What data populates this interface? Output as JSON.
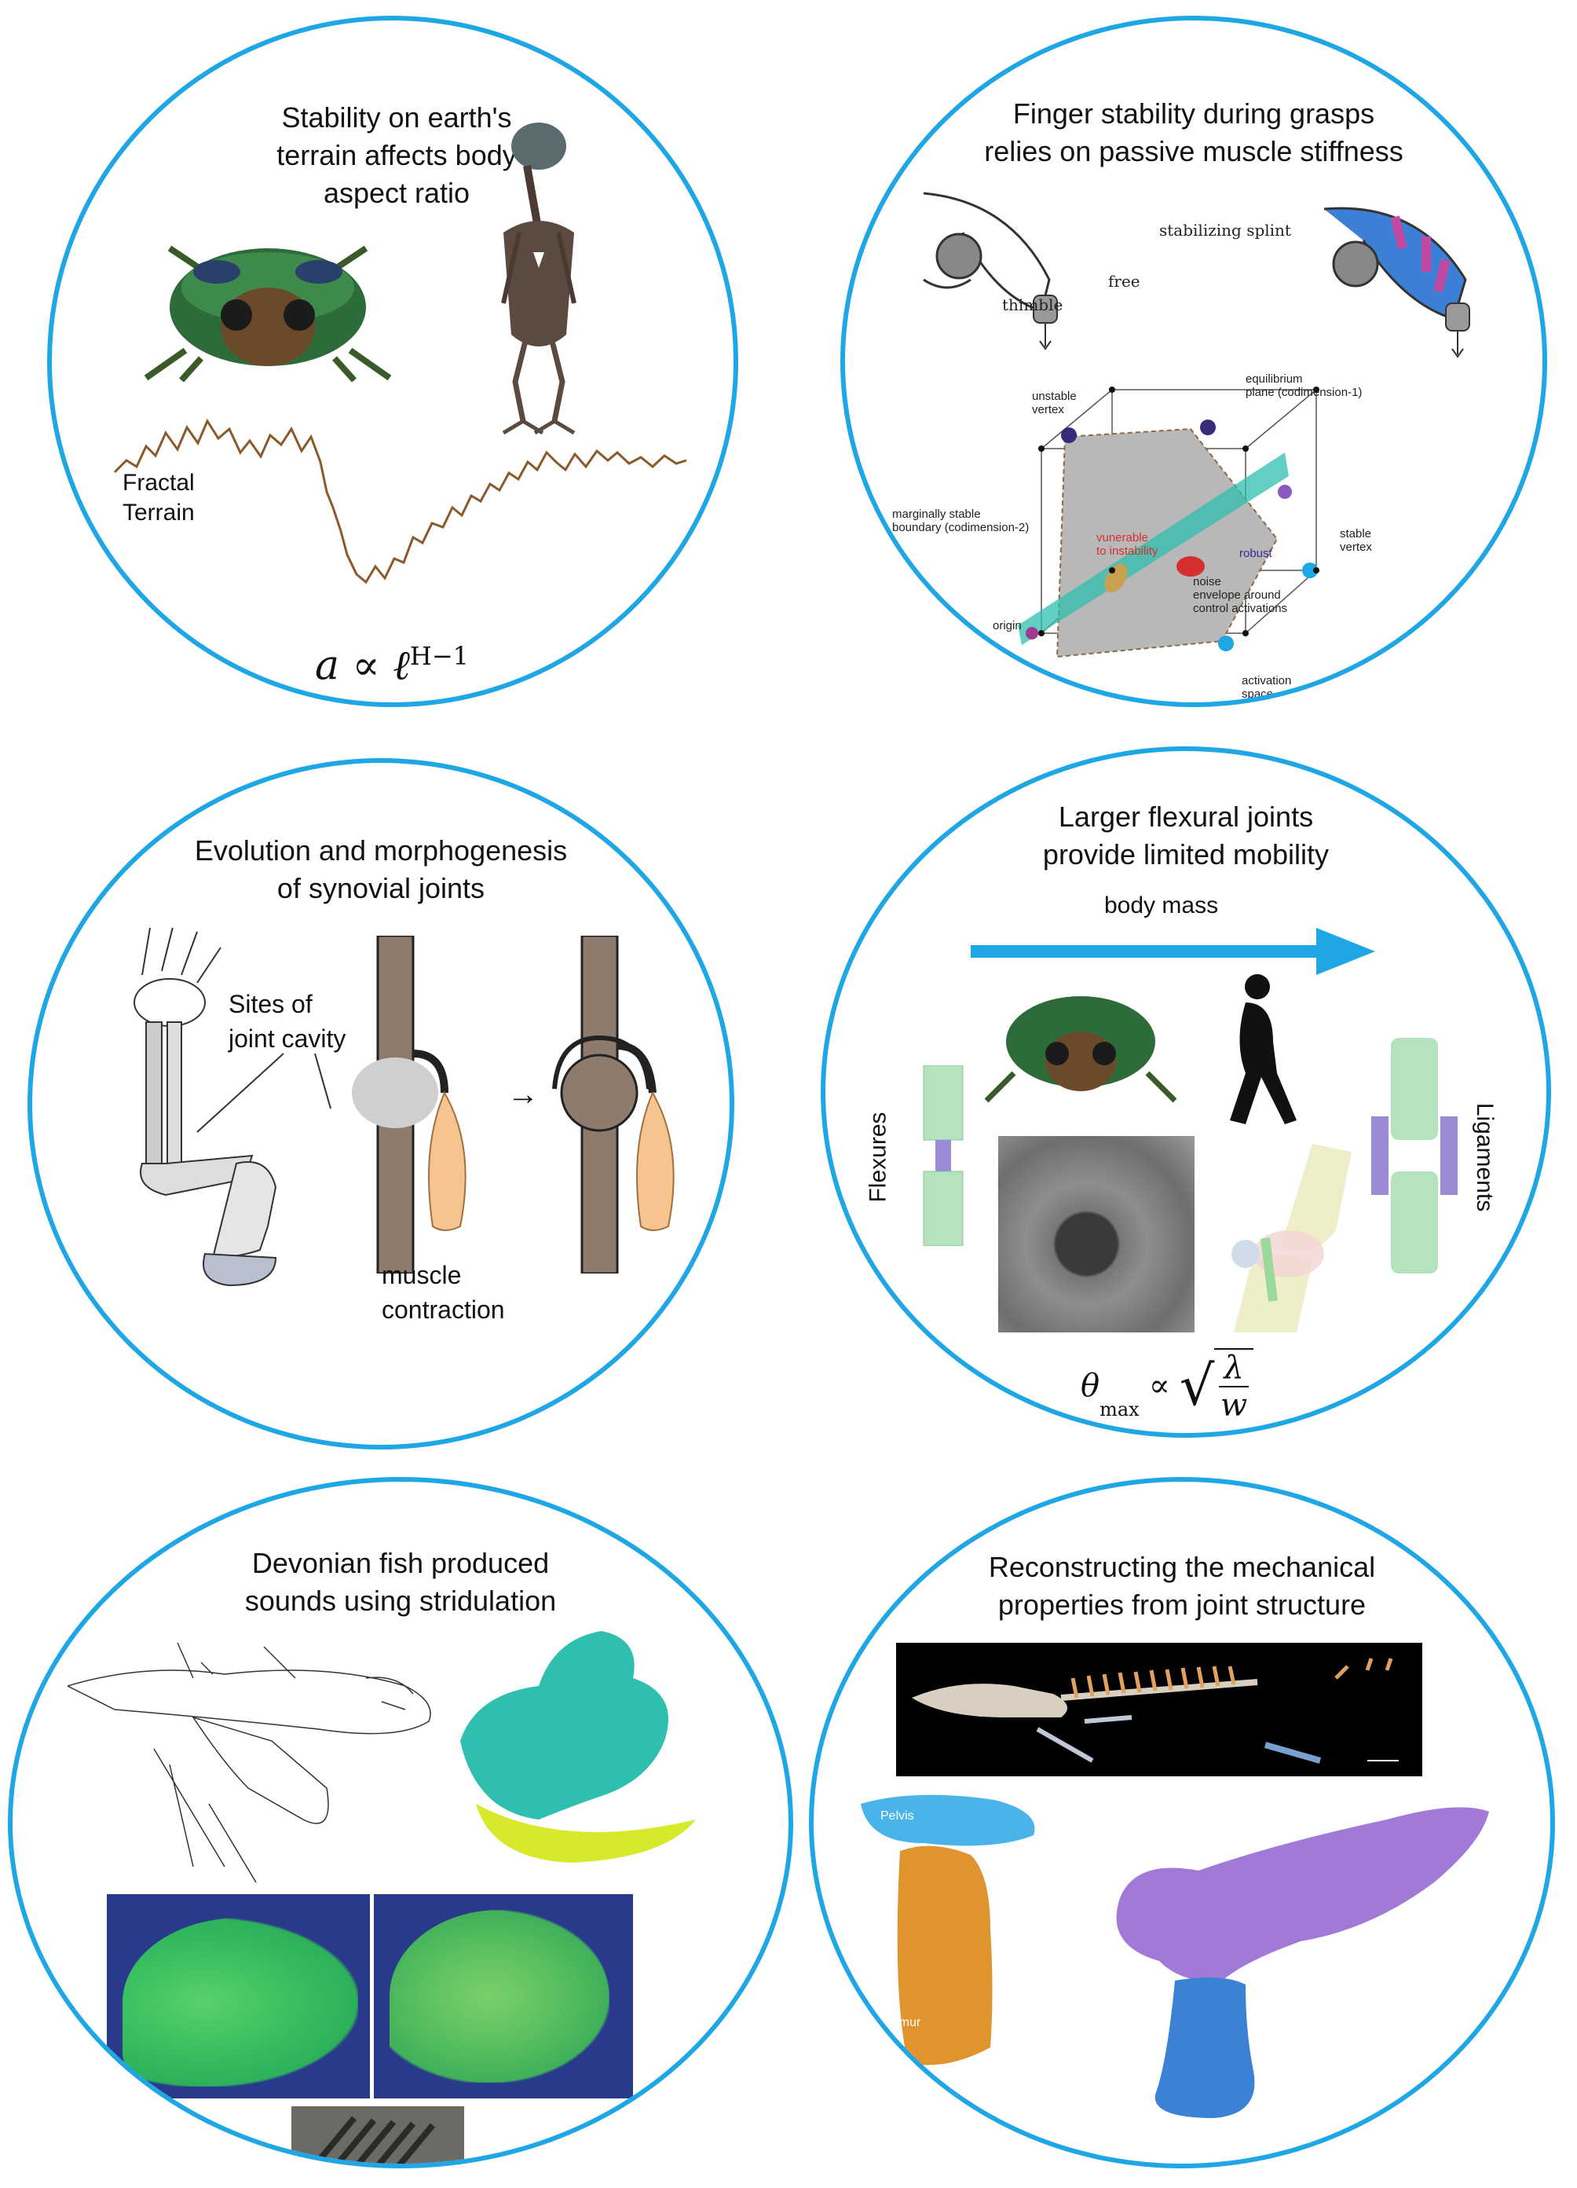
{
  "panels": {
    "stability": {
      "title": "Stability on earth's\nterrain affects body\naspect ratio",
      "terrain_label": "Fractal\nTerrain",
      "formula": "a ∝ ℓ",
      "formula_exp": "H−1"
    },
    "finger": {
      "title": "Finger stability during grasps\nrelies on passive muscle stiffness",
      "thimble": "thimble",
      "free": "free",
      "splint": "stabilizing splint",
      "unstable_vertex": "unstable\nvertex",
      "equilibrium": "equilibrium\nplane (codimension-1)",
      "marginal": "marginally stable\nboundary (codimension-2)",
      "vulnerable": "vunerable\nto instability",
      "robust": "robust",
      "noise": "noise\nenvelope around\ncontrol activations",
      "stable_vertex": "stable\nvertex",
      "origin": "origin",
      "activation": "activation\nspace"
    },
    "synovial": {
      "title": "Evolution and morphogenesis\nof synovial joints",
      "sites": "Sites of\njoint cavity",
      "muscle": "muscle\ncontraction",
      "arrow": "→"
    },
    "flexural": {
      "title": "Larger flexural joints\nprovide limited mobility",
      "body_mass": "body mass",
      "flexures": "Flexures",
      "ligaments": "Ligaments",
      "formula_theta": "θ",
      "formula_sub": "max",
      "formula_prop": "∝",
      "formula_num": "λ",
      "formula_den": "w"
    },
    "devonian": {
      "title": "Devonian fish produced\nsounds using stridulation"
    },
    "reconstruct": {
      "title": "Reconstructing the mechanical\nproperties from joint structure",
      "pelvis": "Pelvis",
      "femur": "Femur"
    }
  },
  "colors": {
    "circle_border": "#1ea7e4",
    "terrain": "#8b5a2b",
    "teal": "#2fbfae",
    "purple": "#9b7ad6",
    "blue": "#3b82d6",
    "orange": "#e0942e",
    "bone": "#7d6b5e"
  }
}
